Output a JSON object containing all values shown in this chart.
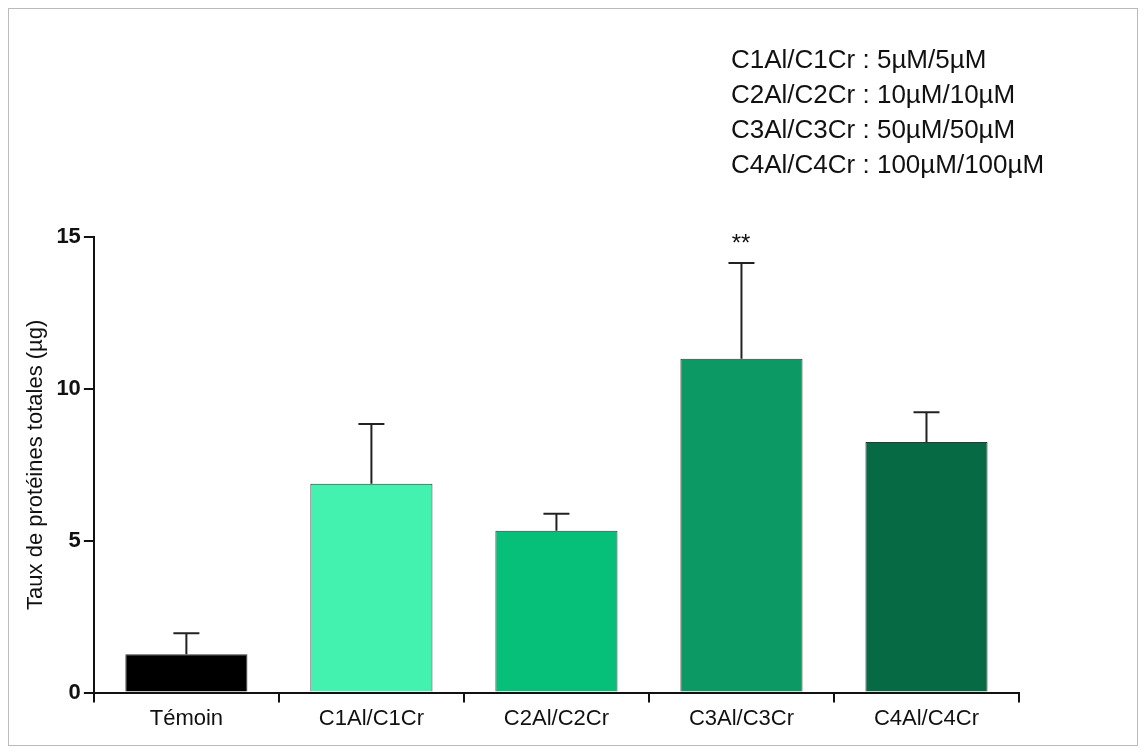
{
  "chart_data": {
    "type": "bar",
    "ylabel": "Taux de protéines totales (µg)",
    "categories": [
      "Témoin",
      "C1Al/C1Cr",
      "C2Al/C2Cr",
      "C3Al/C3Cr",
      "C4Al/C4Cr"
    ],
    "values": [
      1.26,
      6.88,
      5.33,
      10.99,
      8.25
    ],
    "colors": [
      "#000000",
      "#44f2b0",
      "#06bf78",
      "#0c9964",
      "#066b45"
    ],
    "errors": [
      0.69,
      1.96,
      0.56,
      3.15,
      0.98
    ],
    "ylim": [
      0,
      15
    ],
    "yticks": [
      0,
      5,
      10,
      15
    ],
    "grid": false,
    "legend": false,
    "annotations": [
      "**",
      "C1Al/C1Cr : 5µM/5µM",
      "C2Al/C2Cr : 10µM/10µM",
      "C3Al/C3Cr : 50µM/50µM",
      "C4Al/C4Cr : 100µM/100µM"
    ]
  }
}
